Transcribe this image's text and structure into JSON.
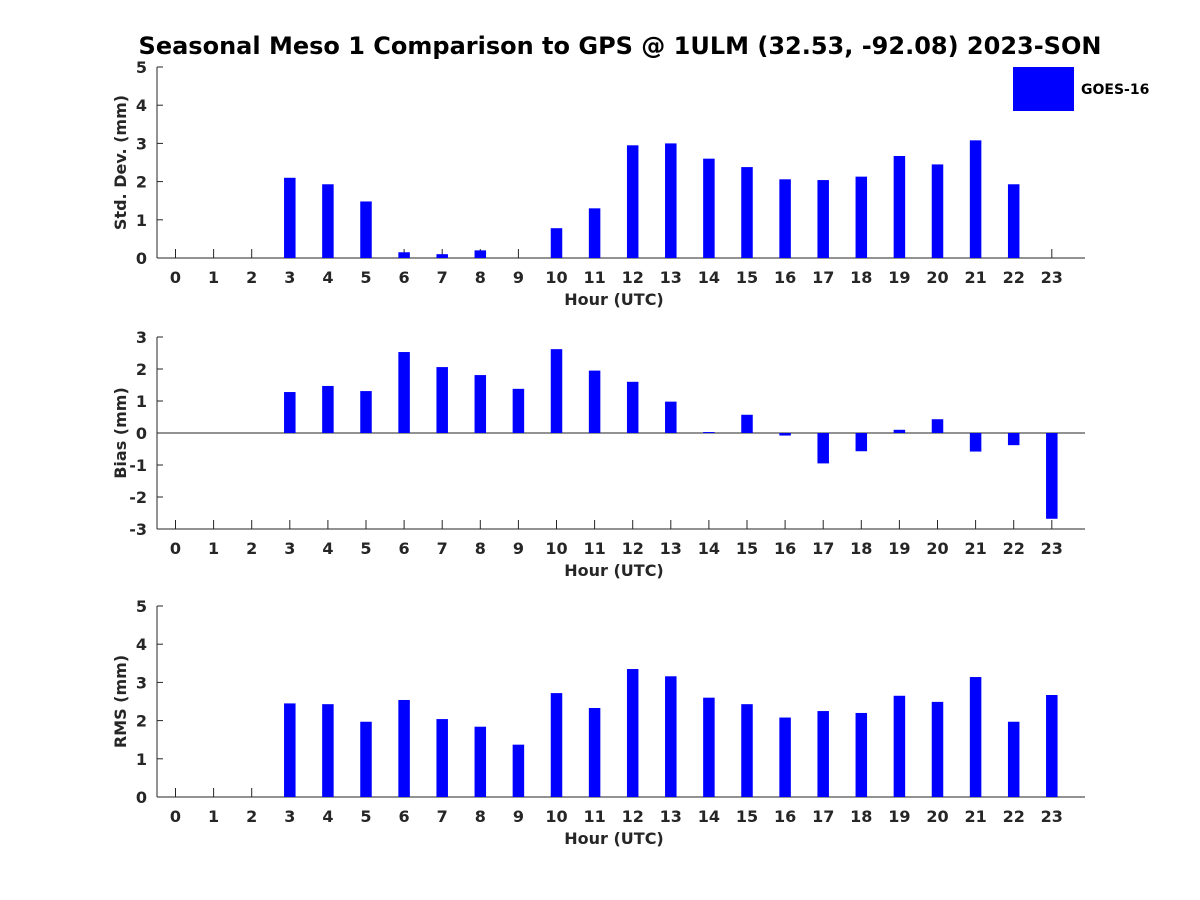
{
  "chart_data": {
    "type": "bar",
    "title": "Seasonal Meso 1 Comparison to GPS @ 1ULM (32.53, -92.08) 2023-SON",
    "legend": {
      "entries": [
        "GOES-16"
      ],
      "placement": "top-right",
      "color": "#0000ff"
    },
    "series_color": "#0000ff",
    "x": [
      "0",
      "1",
      "2",
      "3",
      "4",
      "5",
      "6",
      "7",
      "8",
      "9",
      "10",
      "11",
      "12",
      "13",
      "14",
      "15",
      "16",
      "17",
      "18",
      "19",
      "20",
      "21",
      "22",
      "23"
    ],
    "panels": [
      {
        "name": "std",
        "ylabel": "Std. Dev. (mm)",
        "xlabel": "Hour (UTC)",
        "ylim": [
          0,
          5
        ],
        "yticks": [
          "0",
          "1",
          "2",
          "3",
          "4",
          "5"
        ],
        "values": [
          null,
          null,
          null,
          2.1,
          1.93,
          1.48,
          0.15,
          0.1,
          0.2,
          null,
          0.78,
          1.3,
          2.95,
          3.0,
          2.6,
          2.38,
          2.06,
          2.04,
          2.13,
          2.67,
          2.45,
          3.08,
          1.93,
          null
        ]
      },
      {
        "name": "bias",
        "ylabel": "Bias (mm)",
        "xlabel": "Hour (UTC)",
        "ylim": [
          -3,
          3
        ],
        "yticks": [
          "-3",
          "-2",
          "-1",
          "0",
          "1",
          "2",
          "3"
        ],
        "values": [
          null,
          null,
          null,
          1.28,
          1.47,
          1.31,
          2.53,
          2.06,
          1.81,
          1.38,
          2.62,
          1.95,
          1.6,
          0.98,
          0.03,
          0.57,
          -0.08,
          -0.95,
          -0.57,
          0.1,
          0.43,
          -0.58,
          -0.38,
          -2.68
        ]
      },
      {
        "name": "rms",
        "ylabel": "RMS (mm)",
        "xlabel": "Hour (UTC)",
        "ylim": [
          0,
          5
        ],
        "yticks": [
          "0",
          "1",
          "2",
          "3",
          "4",
          "5"
        ],
        "values": [
          null,
          null,
          null,
          2.45,
          2.43,
          1.97,
          2.54,
          2.04,
          1.84,
          1.37,
          2.72,
          2.33,
          3.35,
          3.16,
          2.6,
          2.43,
          2.08,
          2.25,
          2.2,
          2.65,
          2.49,
          3.14,
          1.97,
          2.67
        ]
      }
    ]
  }
}
